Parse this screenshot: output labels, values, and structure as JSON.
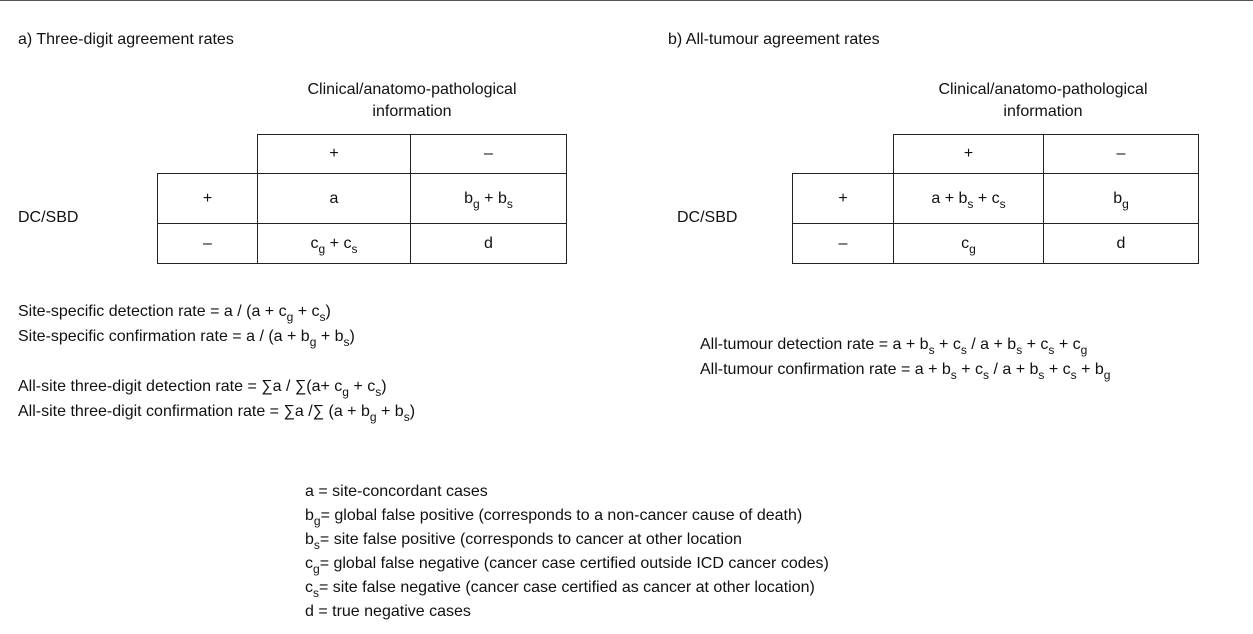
{
  "panels": [
    {
      "heading": "a) Three-digit agreement rates",
      "column_header": [
        "Clinical/anatomo-pathological",
        "information"
      ],
      "row_header": "DC/SBD",
      "table": {
        "header": [
          "+",
          "–"
        ],
        "rows": [
          {
            "label": "+",
            "cells": [
              [
                {
                  "t": "a"
                }
              ],
              [
                {
                  "t": "b"
                },
                {
                  "sub": "g"
                },
                {
                  "t": " + b"
                },
                {
                  "sub": "s"
                }
              ]
            ]
          },
          {
            "label": "–",
            "cells": [
              [
                {
                  "t": "c"
                },
                {
                  "sub": "g"
                },
                {
                  "t": " + c"
                },
                {
                  "sub": "s"
                }
              ],
              [
                {
                  "t": "d"
                }
              ]
            ]
          }
        ]
      },
      "formulas": [
        [
          [
            {
              "t": "Site-specific detection rate = a / (a + c"
            },
            {
              "sub": "g"
            },
            {
              "t": " + c"
            },
            {
              "sub": "s"
            },
            {
              "t": ")"
            }
          ],
          [
            {
              "t": "Site-specific confirmation rate = a / (a + b"
            },
            {
              "sub": "g"
            },
            {
              "t": " + b"
            },
            {
              "sub": "s"
            },
            {
              "t": ")"
            }
          ]
        ],
        [
          [
            {
              "t": "All-site three-digit detection rate =  ∑a / ∑(a+ c"
            },
            {
              "sub": "g"
            },
            {
              "t": " + c"
            },
            {
              "sub": "s"
            },
            {
              "t": ")"
            }
          ],
          [
            {
              "t": "All-site three-digit confirmation rate =  ∑a /∑ (a + b"
            },
            {
              "sub": "g"
            },
            {
              "t": " + b"
            },
            {
              "sub": "s"
            },
            {
              "t": ")"
            }
          ]
        ]
      ]
    },
    {
      "heading": "b) All-tumour agreement rates",
      "column_header": [
        "Clinical/anatomo-pathological",
        "information"
      ],
      "row_header": "DC/SBD",
      "table": {
        "header": [
          "+",
          "–"
        ],
        "rows": [
          {
            "label": "+",
            "cells": [
              [
                {
                  "t": "a + b"
                },
                {
                  "sub": "s"
                },
                {
                  "t": " + c"
                },
                {
                  "sub": "s"
                }
              ],
              [
                {
                  "t": "b"
                },
                {
                  "sub": "g"
                }
              ]
            ]
          },
          {
            "label": "–",
            "cells": [
              [
                {
                  "t": "c"
                },
                {
                  "sub": "g"
                }
              ],
              [
                {
                  "t": "d"
                }
              ]
            ]
          }
        ]
      },
      "formulas": [
        [
          [
            {
              "t": "All-tumour detection rate =  a + b"
            },
            {
              "sub": "s"
            },
            {
              "t": " + c"
            },
            {
              "sub": "s"
            },
            {
              "t": " / a + b"
            },
            {
              "sub": "s"
            },
            {
              "t": " + c"
            },
            {
              "sub": "s"
            },
            {
              "t": " + c"
            },
            {
              "sub": "g"
            }
          ],
          [
            {
              "t": "All-tumour confirmation rate =  a + b"
            },
            {
              "sub": "s"
            },
            {
              "t": " + c"
            },
            {
              "sub": "s"
            },
            {
              "t": " / a + b"
            },
            {
              "sub": "s"
            },
            {
              "t": " + c"
            },
            {
              "sub": "s"
            },
            {
              "t": " + b"
            },
            {
              "sub": "g"
            }
          ]
        ]
      ]
    }
  ],
  "legend": [
    [
      {
        "t": "a  = site-concordant cases"
      }
    ],
    [
      {
        "t": "b"
      },
      {
        "sub": "g"
      },
      {
        "t": "= global false positive (corresponds to a non-cancer cause of death)"
      }
    ],
    [
      {
        "t": "b"
      },
      {
        "sub": "s"
      },
      {
        "t": "= site false positive (corresponds to cancer at other location"
      }
    ],
    [
      {
        "t": "c"
      },
      {
        "sub": "g"
      },
      {
        "t": "= global false negative (cancer case certified outside ICD cancer codes)"
      }
    ],
    [
      {
        "t": "c"
      },
      {
        "sub": "s"
      },
      {
        "t": "= site false negative (cancer case certified as cancer at other location)"
      }
    ],
    [
      {
        "t": "d  = true negative cases"
      }
    ]
  ]
}
